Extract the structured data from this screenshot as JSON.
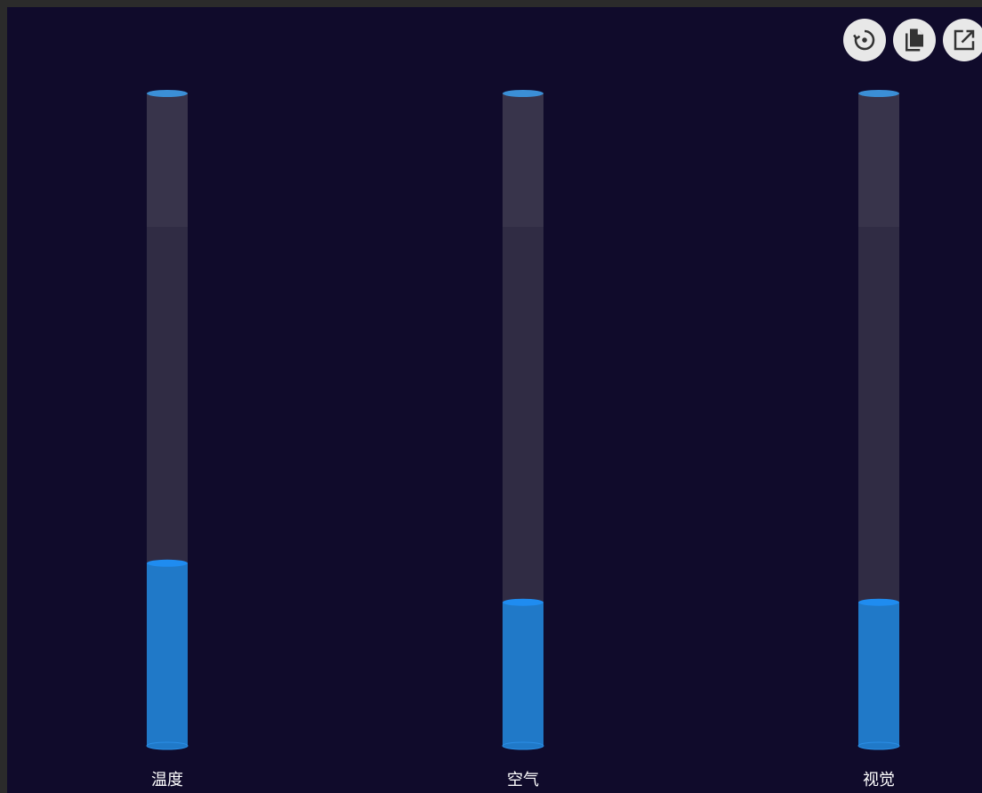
{
  "toolbar": {
    "buttons": [
      {
        "icon": "restore-icon"
      },
      {
        "icon": "copy-icon"
      },
      {
        "icon": "open-external-icon"
      }
    ]
  },
  "chart_data": {
    "type": "bar",
    "title": "",
    "xlabel": "",
    "ylabel": "",
    "categories": [
      "温度",
      "空气",
      "视觉"
    ],
    "values": [
      28,
      22,
      22
    ],
    "ylim": [
      0,
      100
    ],
    "grid": false,
    "colors": {
      "fill": "#2079c8",
      "fill_top": "#1f8cf0",
      "track": "#302c44",
      "track_cap": "#3b8fd6",
      "background": "#100b2b",
      "label": "#ffffff"
    }
  }
}
